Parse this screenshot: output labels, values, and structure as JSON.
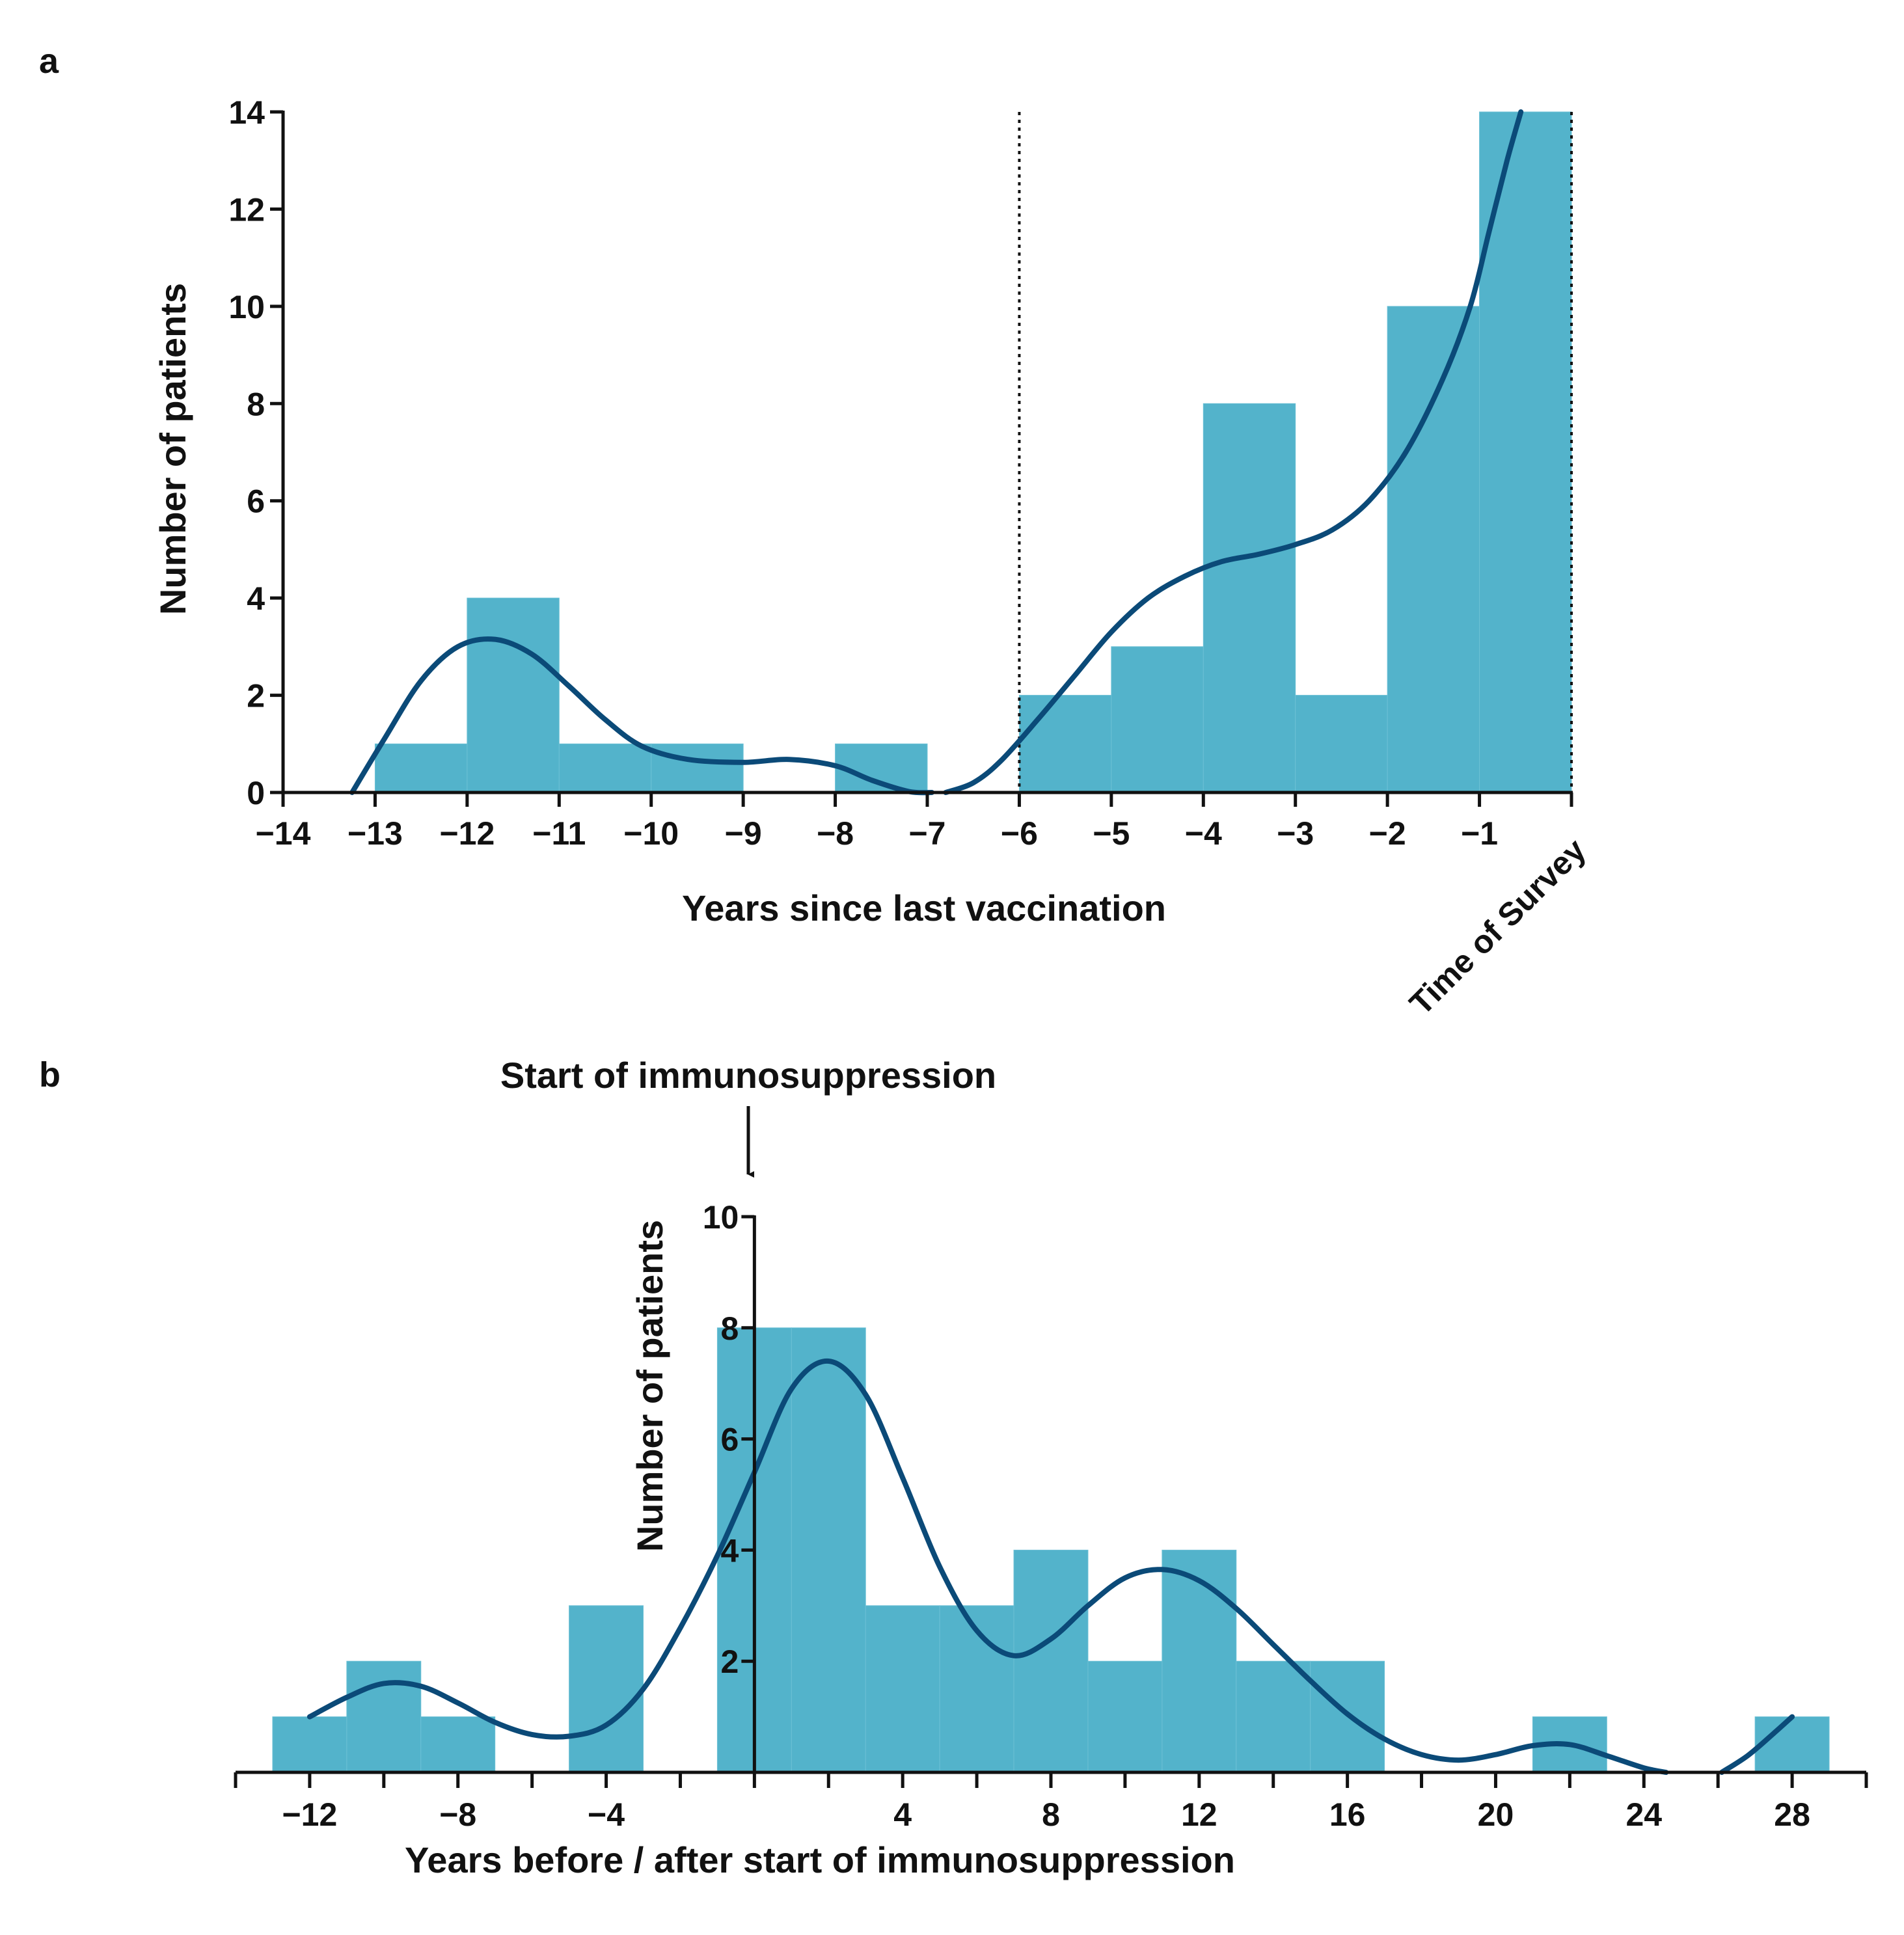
{
  "chart_data": [
    {
      "panel": "a",
      "type": "bar",
      "subtype": "histogram",
      "title": "",
      "xlabel": "Years since last vaccination",
      "ylabel": "Number of patients",
      "xlim": [
        -14,
        0
      ],
      "ylim": [
        0,
        14
      ],
      "x_ticks": [
        -14,
        -13,
        -12,
        -11,
        -10,
        -9,
        -8,
        -7,
        -6,
        -5,
        -4,
        -3,
        -2,
        -1
      ],
      "x_tick_labels": [
        "−14",
        "−13",
        "−12",
        "−11",
        "−10",
        "−9",
        "−8",
        "−7",
        "−6",
        "−5",
        "−4",
        "−3",
        "−2",
        "−1"
      ],
      "y_ticks": [
        0,
        2,
        4,
        6,
        8,
        10,
        12,
        14
      ],
      "y_tick_labels": [
        "0",
        "2",
        "4",
        "6",
        "8",
        "10",
        "12",
        "14"
      ],
      "end_label": "Time of Survey",
      "bins": [
        {
          "start": -13,
          "end": -12,
          "value": 1
        },
        {
          "start": -12,
          "end": -11,
          "value": 4
        },
        {
          "start": -11,
          "end": -10,
          "value": 1
        },
        {
          "start": -10,
          "end": -9,
          "value": 1
        },
        {
          "start": -8,
          "end": -7,
          "value": 1
        },
        {
          "start": -6,
          "end": -5,
          "value": 2
        },
        {
          "start": -5,
          "end": -4,
          "value": 3
        },
        {
          "start": -4,
          "end": -3,
          "value": 8
        },
        {
          "start": -3,
          "end": -2,
          "value": 2
        },
        {
          "start": -2,
          "end": -1,
          "value": 10
        },
        {
          "start": -1,
          "end": 0,
          "value": 14
        }
      ],
      "reference_lines_x": [
        -6,
        0
      ],
      "curve": {
        "name": "density fit",
        "segments": [
          [
            [
              -13.25,
              0
            ],
            [
              -12.9,
              1.1
            ],
            [
              -12.5,
              2.3
            ],
            [
              -12.1,
              3.0
            ],
            [
              -11.7,
              3.15
            ],
            [
              -11.3,
              2.85
            ],
            [
              -10.9,
              2.2
            ],
            [
              -10.5,
              1.5
            ],
            [
              -10.1,
              0.95
            ],
            [
              -9.6,
              0.68
            ],
            [
              -9.0,
              0.62
            ],
            [
              -8.5,
              0.68
            ],
            [
              -8.0,
              0.55
            ],
            [
              -7.6,
              0.25
            ],
            [
              -7.2,
              0.02
            ],
            [
              -6.95,
              0
            ]
          ],
          [
            [
              -6.8,
              0
            ],
            [
              -6.5,
              0.2
            ],
            [
              -6.2,
              0.65
            ],
            [
              -5.8,
              1.5
            ],
            [
              -5.4,
              2.4
            ],
            [
              -5.0,
              3.3
            ],
            [
              -4.6,
              4.0
            ],
            [
              -4.2,
              4.45
            ],
            [
              -3.8,
              4.75
            ],
            [
              -3.4,
              4.9
            ],
            [
              -3.0,
              5.1
            ],
            [
              -2.6,
              5.4
            ],
            [
              -2.2,
              6.0
            ],
            [
              -1.8,
              7.0
            ],
            [
              -1.4,
              8.5
            ],
            [
              -1.1,
              10.0
            ],
            [
              -0.9,
              11.5
            ],
            [
              -0.7,
              13.0
            ],
            [
              -0.55,
              14.0
            ]
          ]
        ]
      }
    },
    {
      "panel": "b",
      "type": "bar",
      "subtype": "histogram",
      "title": "",
      "annotation": "Start of immunosuppression",
      "xlabel": "Years before / after start of immunosuppression",
      "ylabel": "Number of patients",
      "xlim": [
        -14,
        30
      ],
      "ylim": [
        0,
        10
      ],
      "x_ticks": [
        -12,
        -8,
        -4,
        4,
        8,
        12,
        16,
        20,
        24,
        28
      ],
      "x_tick_labels": [
        "−12",
        "−8",
        "−4",
        "4",
        "8",
        "12",
        "16",
        "20",
        "24",
        "28"
      ],
      "x_minor_ticks": [
        -14,
        -10,
        -6,
        -2,
        0,
        2,
        6,
        10,
        14,
        18,
        22,
        26,
        30
      ],
      "y_ticks": [
        2,
        4,
        6,
        8,
        10
      ],
      "y_tick_labels": [
        "2",
        "4",
        "6",
        "8",
        "10"
      ],
      "bins": [
        {
          "start": -13,
          "end": -11,
          "value": 1
        },
        {
          "start": -11,
          "end": -9,
          "value": 2
        },
        {
          "start": -9,
          "end": -7,
          "value": 1
        },
        {
          "start": -5,
          "end": -3,
          "value": 3
        },
        {
          "start": -1,
          "end": 1,
          "value": 8
        },
        {
          "start": 1,
          "end": 3,
          "value": 8
        },
        {
          "start": 3,
          "end": 5,
          "value": 3
        },
        {
          "start": 5,
          "end": 7,
          "value": 3
        },
        {
          "start": 7,
          "end": 9,
          "value": 4
        },
        {
          "start": 9,
          "end": 11,
          "value": 2
        },
        {
          "start": 11,
          "end": 13,
          "value": 4
        },
        {
          "start": 13,
          "end": 15,
          "value": 2
        },
        {
          "start": 15,
          "end": 17,
          "value": 2
        },
        {
          "start": 21,
          "end": 23,
          "value": 1
        },
        {
          "start": 27,
          "end": 29,
          "value": 1
        }
      ],
      "curve": {
        "name": "density fit",
        "segments": [
          [
            [
              -12,
              1.0
            ],
            [
              -11,
              1.35
            ],
            [
              -10,
              1.6
            ],
            [
              -9,
              1.55
            ],
            [
              -8,
              1.25
            ],
            [
              -7,
              0.9
            ],
            [
              -6,
              0.68
            ],
            [
              -5,
              0.65
            ],
            [
              -4,
              0.85
            ],
            [
              -3,
              1.5
            ],
            [
              -2,
              2.6
            ],
            [
              -1,
              3.9
            ],
            [
              0,
              5.4
            ],
            [
              1,
              6.9
            ],
            [
              2,
              7.4
            ],
            [
              3,
              6.8
            ],
            [
              4,
              5.3
            ],
            [
              5,
              3.7
            ],
            [
              6,
              2.55
            ],
            [
              7,
              2.1
            ],
            [
              8,
              2.4
            ],
            [
              9,
              3.0
            ],
            [
              10,
              3.5
            ],
            [
              11,
              3.65
            ],
            [
              12,
              3.45
            ],
            [
              13,
              2.95
            ],
            [
              14,
              2.3
            ],
            [
              15,
              1.65
            ],
            [
              16,
              1.05
            ],
            [
              17,
              0.6
            ],
            [
              18,
              0.32
            ],
            [
              19,
              0.22
            ],
            [
              20,
              0.32
            ],
            [
              21,
              0.48
            ],
            [
              22,
              0.5
            ],
            [
              23,
              0.3
            ],
            [
              24,
              0.08
            ],
            [
              24.6,
              0
            ]
          ],
          [
            [
              26.1,
              0
            ],
            [
              26.8,
              0.3
            ],
            [
              27.5,
              0.7
            ],
            [
              28,
              1.0
            ]
          ]
        ]
      }
    }
  ]
}
